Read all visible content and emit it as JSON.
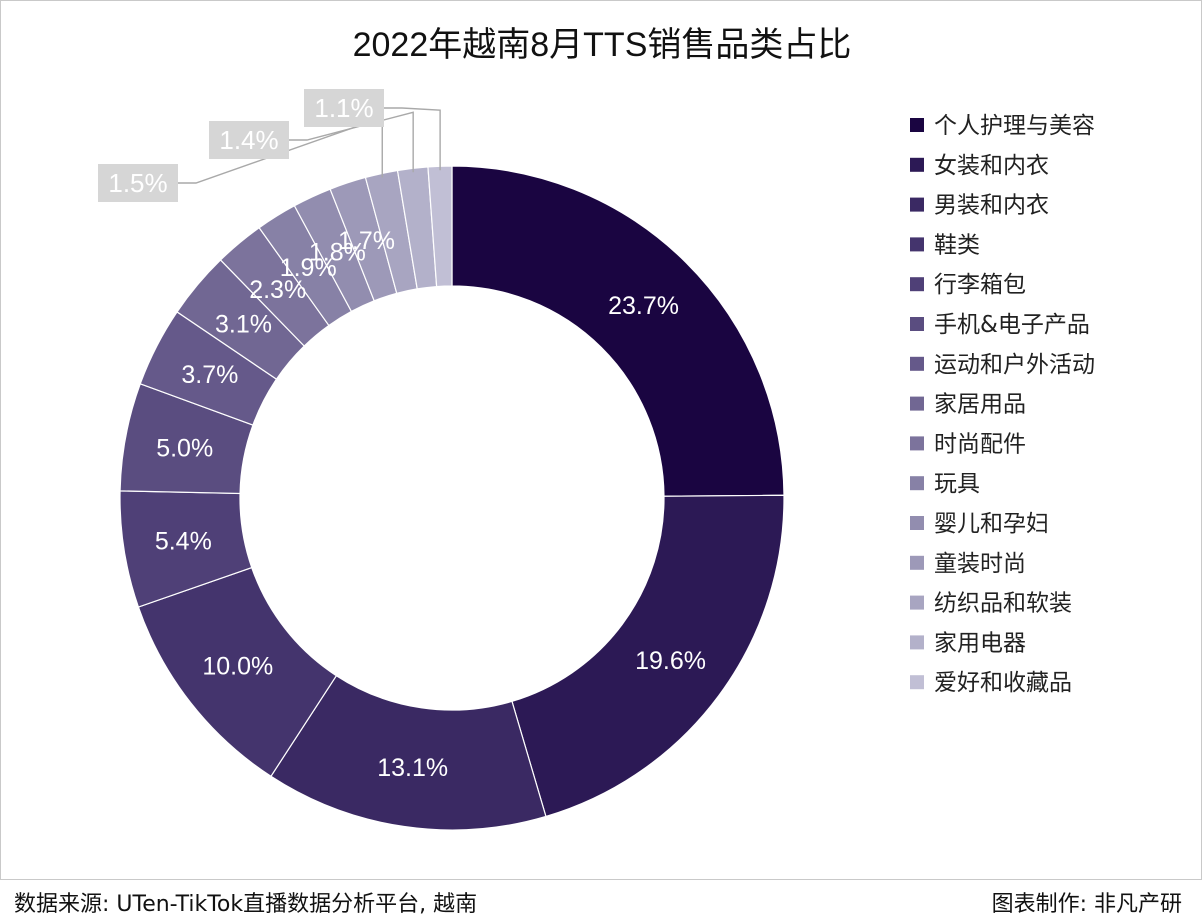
{
  "footer": {
    "source": "数据来源: UTen-TikTok直播数据分析平台, 越南",
    "credit": "图表制作: 非凡产研"
  },
  "chart_data": {
    "type": "pie",
    "donut": true,
    "title": "2022年越南8月TTS销售品类占比",
    "legend_position": "right",
    "categories": [
      "个人护理与美容",
      "女装和内衣",
      "男装和内衣",
      "鞋类",
      "行李箱包",
      "手机&电子产品",
      "运动和户外活动",
      "家居用品",
      "时尚配件",
      "玩具",
      "婴儿和孕妇",
      "童装时尚",
      "纺织品和软装",
      "家用电器",
      "爱好和收藏品"
    ],
    "values": [
      23.7,
      19.6,
      13.1,
      10.0,
      5.4,
      5.0,
      3.7,
      3.1,
      2.3,
      1.9,
      1.8,
      1.7,
      1.5,
      1.4,
      1.1
    ],
    "value_labels": [
      "23.7%",
      "19.6%",
      "13.1%",
      "10.0%",
      "5.4%",
      "5.0%",
      "3.7%",
      "3.1%",
      "2.3%",
      "1.9%",
      "1.8%",
      "1.7%",
      "1.5%",
      "1.4%",
      "1.1%"
    ],
    "colors": [
      "#1a0541",
      "#2c1955",
      "#3a2963",
      "#44346d",
      "#4f4077",
      "#5a4d80",
      "#65598a",
      "#716793",
      "#7c739c",
      "#8781a6",
      "#928daf",
      "#9d99b8",
      "#a8a5c1",
      "#b3b1ca",
      "#c1bfd5"
    ]
  }
}
